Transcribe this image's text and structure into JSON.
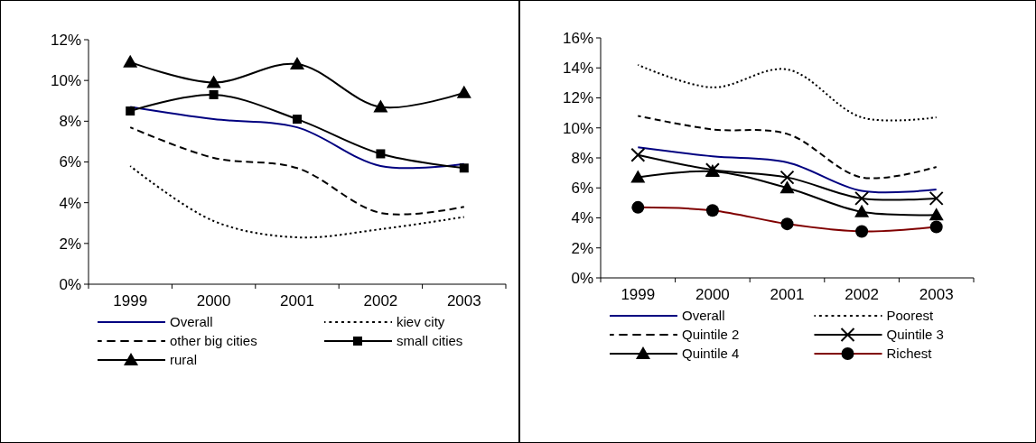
{
  "chart_data": [
    {
      "type": "line",
      "categories": [
        "1999",
        "2000",
        "2001",
        "2002",
        "2003"
      ],
      "ylim": [
        0,
        12
      ],
      "yticks": [
        {
          "value": 0,
          "label": "0%"
        },
        {
          "value": 2,
          "label": "2%"
        },
        {
          "value": 4,
          "label": "4%"
        },
        {
          "value": 6,
          "label": "6%"
        },
        {
          "value": 8,
          "label": "8%"
        },
        {
          "value": 10,
          "label": "10%"
        },
        {
          "value": 12,
          "label": "12%"
        }
      ],
      "legend": "bottom",
      "grid": false,
      "series": [
        {
          "name": "Overall",
          "color": "#000080",
          "line_style": "solid",
          "marker": "none",
          "values": [
            8.7,
            8.1,
            7.7,
            5.8,
            5.9
          ]
        },
        {
          "name": "kiev city",
          "color": "#000000",
          "line_style": "dotted",
          "marker": "none",
          "values": [
            5.8,
            3.1,
            2.3,
            2.7,
            3.3
          ]
        },
        {
          "name": "other big cities",
          "color": "#000000",
          "line_style": "dashed",
          "marker": "none",
          "values": [
            7.7,
            6.2,
            5.7,
            3.5,
            3.8
          ]
        },
        {
          "name": "small cities",
          "color": "#000000",
          "line_style": "solid",
          "marker": "square",
          "values": [
            8.5,
            9.3,
            8.1,
            6.4,
            5.7
          ]
        },
        {
          "name": "rural",
          "color": "#000000",
          "line_style": "solid",
          "marker": "triangle",
          "values": [
            10.9,
            9.9,
            10.8,
            8.7,
            9.4
          ]
        }
      ]
    },
    {
      "type": "line",
      "categories": [
        "1999",
        "2000",
        "2001",
        "2002",
        "2003"
      ],
      "ylim": [
        0,
        16
      ],
      "yticks": [
        {
          "value": 0,
          "label": "0%"
        },
        {
          "value": 2,
          "label": "2%"
        },
        {
          "value": 4,
          "label": "4%"
        },
        {
          "value": 6,
          "label": "6%"
        },
        {
          "value": 8,
          "label": "8%"
        },
        {
          "value": 10,
          "label": "10%"
        },
        {
          "value": 12,
          "label": "12%"
        },
        {
          "value": 14,
          "label": "14%"
        },
        {
          "value": 16,
          "label": "16%"
        }
      ],
      "legend": "bottom",
      "grid": false,
      "series": [
        {
          "name": "Overall",
          "color": "#000080",
          "line_style": "solid",
          "marker": "none",
          "values": [
            8.7,
            8.1,
            7.7,
            5.8,
            5.9
          ]
        },
        {
          "name": "Poorest",
          "color": "#000000",
          "line_style": "dotted",
          "marker": "none",
          "values": [
            14.2,
            12.7,
            13.9,
            10.7,
            10.7
          ]
        },
        {
          "name": "Quintile 2",
          "color": "#000000",
          "line_style": "dashed",
          "marker": "none",
          "values": [
            10.8,
            9.9,
            9.6,
            6.7,
            7.4
          ]
        },
        {
          "name": "Quintile 3",
          "color": "#000000",
          "line_style": "solid",
          "marker": "cross",
          "values": [
            8.2,
            7.2,
            6.7,
            5.3,
            5.3
          ]
        },
        {
          "name": "Quintile 4",
          "color": "#000000",
          "line_style": "solid",
          "marker": "triangle",
          "values": [
            6.7,
            7.1,
            6.0,
            4.4,
            4.2
          ]
        },
        {
          "name": "Richest",
          "color": "#800000",
          "line_style": "solid",
          "marker": "circle",
          "values": [
            4.7,
            4.5,
            3.6,
            3.1,
            3.4
          ]
        }
      ]
    }
  ]
}
